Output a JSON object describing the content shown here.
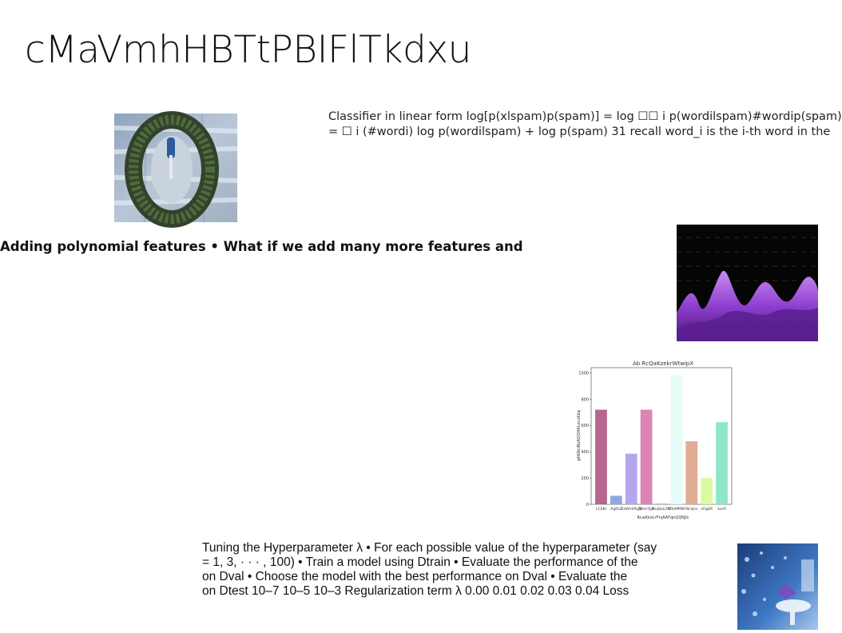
{
  "slide": {
    "title": "cMaVmhHBTtPBIFlTkdxu",
    "paragraph1": {
      "lines": [
        "Classifier in linear form log[p(xlspam)p(spam)] = log ☐☐ i p(wordilspam)#wordip(spam)",
        "= ☐ i (#wordi) log p(wordilspam) + log p(spam) 31 recall word_i is the i-th word in the"
      ]
    },
    "heading2": "Adding polynomial features • What if we add many more features and",
    "paragraph3": {
      "lines": [
        "Tuning the Hyperparameter λ • For each possible value of the hyperparameter (say",
        "= 1, 3, · · · , 100) • Train a model using Dtrain • Evaluate the performance of the",
        "on Dval • Choose the model with the best performance on Dval • Evaluate the",
        "on Dtest 10–7 10–5 10–3 Regularization term λ 0.00 0.01 0.02 0.03 0.04 Loss"
      ]
    },
    "images": {
      "wreath": "wreath-photo",
      "purple": "purple-surface-render",
      "blue": "blue-interior-photo"
    }
  },
  "chart_data": {
    "type": "bar",
    "title": "Ab RcQaKzekrWtwipX",
    "ylabel": "gKKNcIBoAQOHALecxKbq",
    "xlabel": "RcwKkoLrFnjAAFqnQQNJlc",
    "ylim": [
      0,
      1040
    ],
    "yticks": [
      0,
      200,
      400,
      600,
      800,
      1000
    ],
    "categories": [
      "LCSKI",
      "XgPsZ",
      "ZaWmPbjjX",
      "NbmYJjB",
      "UujSaLiDk",
      "YReMMW",
      "Wrajns",
      "nFgbR",
      "kscfi"
    ],
    "values": [
      720,
      65,
      385,
      720,
      5,
      985,
      480,
      200,
      625
    ],
    "colors": [
      "#b5678e",
      "#8fa8e0",
      "#b6a6ee",
      "#db84b6",
      "#b0a8a8",
      "#e6fdf7",
      "#dfae95",
      "#dcfaa0",
      "#8de6c8"
    ],
    "grid": false
  }
}
